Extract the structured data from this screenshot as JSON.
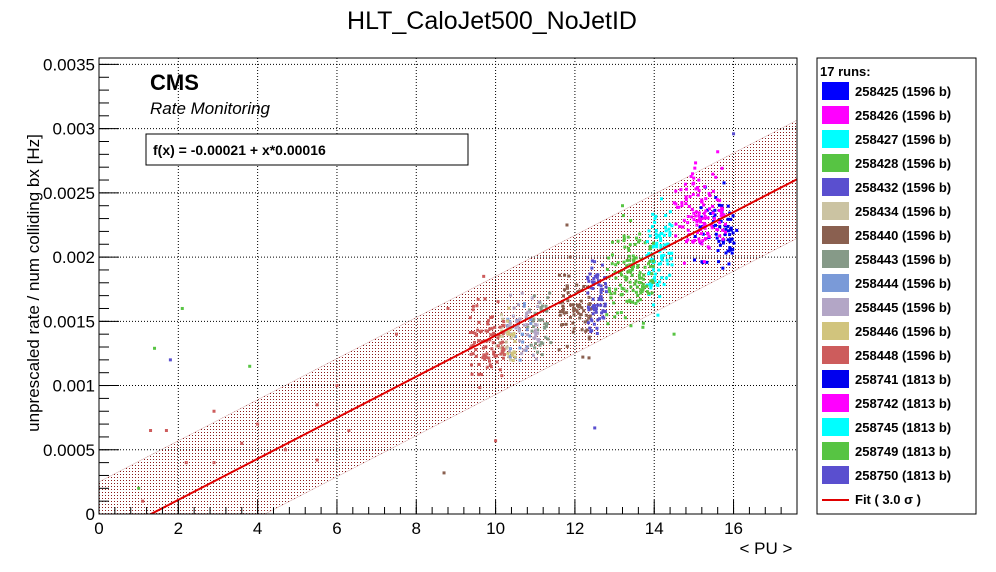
{
  "chart_data": {
    "type": "scatter",
    "title": "HLT_CaloJet500_NoJetID",
    "xlabel": "< PU >",
    "ylabel": "unprescaled rate / num colliding bx [Hz]",
    "xlim": [
      0,
      17.6
    ],
    "ylim": [
      0,
      0.00355
    ],
    "x_ticks": [
      "0",
      "2",
      "4",
      "6",
      "8",
      "10",
      "12",
      "14",
      "16"
    ],
    "y_ticks": [
      "0",
      "0.0005",
      "0.001",
      "0.0015",
      "0.002",
      "0.0025",
      "0.003",
      "0.0035"
    ],
    "grid": true,
    "annotation_experiment": "CMS",
    "annotation_subtitle": "Rate Monitoring",
    "fit_formula": "f(x) = -0.00021 + x*0.00016",
    "fit": {
      "intercept": -0.00021,
      "slope": 0.00016,
      "band": 0.00046,
      "color": "#e00000"
    },
    "band_color": "#8b1a1a",
    "legend_header": "17 runs:",
    "legend_placement": "right",
    "fit_legend_label": "Fit ( 3.0 σ )",
    "series": [
      {
        "name": "258425 (1596 b)",
        "color": "#0000ff",
        "x_center": 15.5,
        "x_spread": 0.6,
        "y_center": 0.0022,
        "y_spread": 0.00025,
        "count": 40
      },
      {
        "name": "258426 (1596 b)",
        "color": "#ff00ff",
        "x_center": 15.0,
        "x_spread": 0.5,
        "y_center": 0.0023,
        "y_spread": 0.00025,
        "count": 60
      },
      {
        "name": "258427 (1596 b)",
        "color": "#00ffff",
        "x_center": 14.2,
        "x_spread": 0.25,
        "y_center": 0.0021,
        "y_spread": 0.00025,
        "count": 50
      },
      {
        "name": "258428 (1596 b)",
        "color": "#57c443",
        "x_center": 13.3,
        "x_spread": 0.5,
        "y_center": 0.0018,
        "y_spread": 0.00025,
        "count": 70
      },
      {
        "name": "258432 (1596 b)",
        "color": "#5a4fcf",
        "x_center": 12.6,
        "x_spread": 0.2,
        "y_center": 0.0017,
        "y_spread": 0.0002,
        "count": 40
      },
      {
        "name": "258434 (1596 b)",
        "color": "#cbc3a2",
        "x_center": 10.2,
        "x_spread": 0.2,
        "y_center": 0.00135,
        "y_spread": 0.0002,
        "count": 20
      },
      {
        "name": "258440 (1596 b)",
        "color": "#8a6050",
        "x_center": 12.0,
        "x_spread": 0.4,
        "y_center": 0.0016,
        "y_spread": 0.00025,
        "count": 70
      },
      {
        "name": "258443 (1596 b)",
        "color": "#869a88",
        "x_center": 11.1,
        "x_spread": 0.3,
        "y_center": 0.0015,
        "y_spread": 0.0002,
        "count": 40
      },
      {
        "name": "258444 (1596 b)",
        "color": "#7a9ad8",
        "x_center": 10.6,
        "x_spread": 0.3,
        "y_center": 0.0014,
        "y_spread": 0.0002,
        "count": 30
      },
      {
        "name": "258445 (1596 b)",
        "color": "#b3a6c6",
        "x_center": 10.7,
        "x_spread": 0.4,
        "y_center": 0.00145,
        "y_spread": 0.0002,
        "count": 45
      },
      {
        "name": "258446 (1596 b)",
        "color": "#d1c47d",
        "x_center": 10.3,
        "x_spread": 0.2,
        "y_center": 0.00135,
        "y_spread": 0.0002,
        "count": 20
      },
      {
        "name": "258448 (1596 b)",
        "color": "#cd5c5c",
        "x_center": 9.8,
        "x_spread": 0.45,
        "y_center": 0.0013,
        "y_spread": 0.00025,
        "count": 90
      },
      {
        "name": "258741 (1813 b)",
        "color": "#0000ee",
        "x_center": 15.8,
        "x_spread": 0.2,
        "y_center": 0.0022,
        "y_spread": 0.00025,
        "count": 30
      },
      {
        "name": "258742 (1813 b)",
        "color": "#ff00ff",
        "x_center": 15.3,
        "x_spread": 0.5,
        "y_center": 0.0024,
        "y_spread": 0.00025,
        "count": 60
      },
      {
        "name": "258745 (1813 b)",
        "color": "#00ffff",
        "x_center": 14.0,
        "x_spread": 0.2,
        "y_center": 0.0019,
        "y_spread": 0.00025,
        "count": 40
      },
      {
        "name": "258749 (1813 b)",
        "color": "#57c443",
        "x_center": 13.6,
        "x_spread": 0.4,
        "y_center": 0.00195,
        "y_spread": 0.00025,
        "count": 60
      },
      {
        "name": "258750 (1813 b)",
        "color": "#5a4fcf",
        "x_center": 12.5,
        "x_spread": 0.2,
        "y_center": 0.0017,
        "y_spread": 0.00025,
        "count": 30
      }
    ],
    "outliers": [
      {
        "x": 2.1,
        "y": 0.0016,
        "color": "#57c443"
      },
      {
        "x": 1.4,
        "y": 0.00129,
        "color": "#57c443"
      },
      {
        "x": 1.8,
        "y": 0.0012,
        "color": "#5a4fcf"
      },
      {
        "x": 3.8,
        "y": 0.00115,
        "color": "#57c443"
      },
      {
        "x": 12.5,
        "y": 0.00067,
        "color": "#5a4fcf"
      },
      {
        "x": 8.7,
        "y": 0.00032,
        "color": "#8a6050"
      },
      {
        "x": 1.3,
        "y": 0.00065,
        "color": "#cd5c5c"
      },
      {
        "x": 1.7,
        "y": 0.00065,
        "color": "#cd5c5c"
      },
      {
        "x": 2.9,
        "y": 0.0008,
        "color": "#cd5c5c"
      },
      {
        "x": 4.0,
        "y": 0.0007,
        "color": "#cd5c5c"
      },
      {
        "x": 2.2,
        "y": 0.0004,
        "color": "#cd5c5c"
      },
      {
        "x": 1.1,
        "y": 0.0001,
        "color": "#cd5c5c"
      },
      {
        "x": 1.0,
        "y": 0.0002,
        "color": "#57c443"
      },
      {
        "x": 4.7,
        "y": 0.0005,
        "color": "#cd5c5c"
      },
      {
        "x": 5.5,
        "y": 0.00085,
        "color": "#cd5c5c"
      },
      {
        "x": 6.3,
        "y": 0.00065,
        "color": "#cd5c5c"
      },
      {
        "x": 7.5,
        "y": 0.0014,
        "color": "#cd5c5c"
      },
      {
        "x": 8.8,
        "y": 0.0016,
        "color": "#cd5c5c"
      },
      {
        "x": 9.7,
        "y": 0.00185,
        "color": "#cd5c5c"
      },
      {
        "x": 10.0,
        "y": 0.00057,
        "color": "#cd5c5c"
      },
      {
        "x": 2.9,
        "y": 0.0004,
        "color": "#cd5c5c"
      },
      {
        "x": 3.6,
        "y": 0.00055,
        "color": "#cd5c5c"
      },
      {
        "x": 5.5,
        "y": 0.00042,
        "color": "#cd5c5c"
      },
      {
        "x": 6.0,
        "y": 0.001,
        "color": "#cd5c5c"
      },
      {
        "x": 11.8,
        "y": 0.00225,
        "color": "#8a6050"
      },
      {
        "x": 13.2,
        "y": 0.0024,
        "color": "#57c443"
      },
      {
        "x": 16.0,
        "y": 0.00296,
        "color": "#5a4fcf"
      },
      {
        "x": 14.5,
        "y": 0.0014,
        "color": "#57c443"
      },
      {
        "x": 15.6,
        "y": 0.00282,
        "color": "#ff00ff"
      }
    ]
  }
}
